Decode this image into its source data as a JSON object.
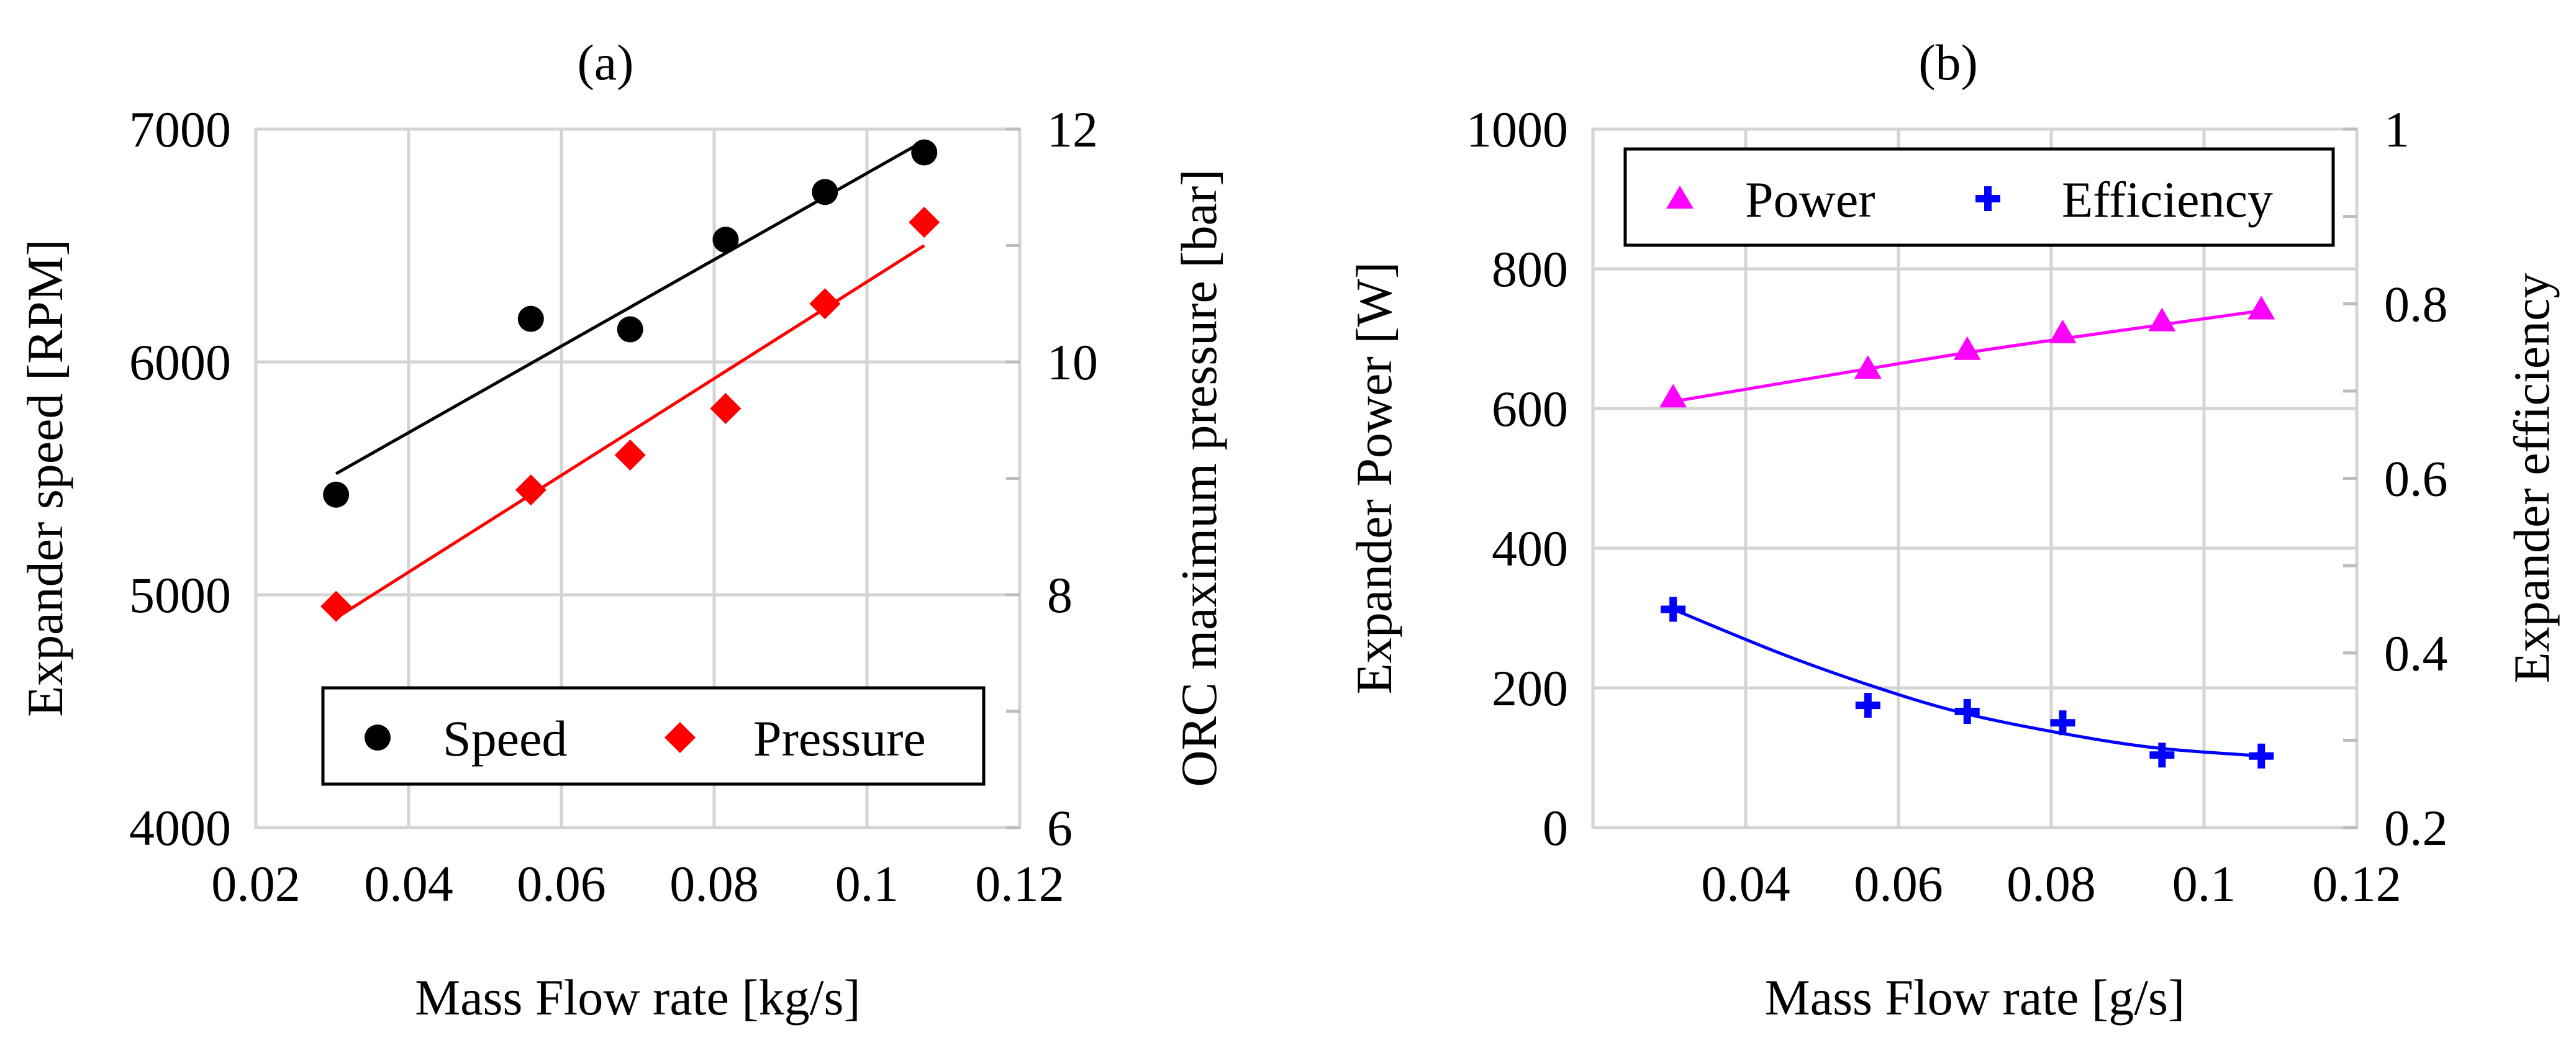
{
  "chart_data": [
    {
      "type": "scatter",
      "panel_label": "(a)",
      "title": "",
      "xlabel": "Mass Flow rate [kg/s]",
      "ylabel": "Expander speed [RPM]",
      "y2label": "ORC maximum pressure [bar]",
      "xlim": [
        0.02,
        0.12
      ],
      "ylim": [
        4000,
        7000
      ],
      "y2lim": [
        6,
        12
      ],
      "xticks": [
        0.02,
        0.04,
        0.06,
        0.08,
        0.1,
        0.12
      ],
      "xtick_labels": [
        "0.02",
        "0.04",
        "0.06",
        "0.08",
        "0.1",
        "0.12"
      ],
      "yticks": [
        4000,
        5000,
        6000,
        7000
      ],
      "ytick_labels": [
        "4000",
        "5000",
        "6000",
        "7000"
      ],
      "y2ticks": [
        6,
        8,
        10,
        12
      ],
      "y2tick_labels": [
        "6",
        "8",
        "10",
        "12"
      ],
      "grid": true,
      "legend_position": "bottom",
      "series": [
        {
          "name": "Speed",
          "axis": "left",
          "marker": "circle",
          "color": "#000000",
          "x": [
            0.0305,
            0.056,
            0.069,
            0.0815,
            0.0945,
            0.1075
          ],
          "y": [
            5430,
            6185,
            6140,
            6525,
            6730,
            6900
          ],
          "trendline": {
            "kind": "linear",
            "x": [
              0.0305,
              0.1075
            ],
            "y": [
              5520,
              6950
            ]
          }
        },
        {
          "name": "Pressure",
          "axis": "right",
          "marker": "diamond",
          "color": "#ff0000",
          "x": [
            0.0305,
            0.056,
            0.069,
            0.0815,
            0.0945,
            0.1075
          ],
          "y": [
            7.9,
            8.9,
            9.2,
            9.6,
            10.5,
            11.2
          ],
          "trendline": {
            "kind": "linear",
            "x": [
              0.0305,
              0.1075
            ],
            "y": [
              7.8,
              11.0
            ]
          }
        }
      ]
    },
    {
      "type": "scatter",
      "panel_label": "(b)",
      "title": "",
      "xlabel": "Mass Flow rate [g/s]",
      "ylabel": "Expander Power [W]",
      "y2label": "Expander efficiency",
      "xlim": [
        0.02,
        0.12
      ],
      "ylim": [
        0,
        1000
      ],
      "y2lim": [
        0.2,
        1.0
      ],
      "xticks": [
        0.04,
        0.06,
        0.08,
        0.1,
        0.12
      ],
      "xtick_labels": [
        "0.04",
        "0.06",
        "0.08",
        "0.1",
        "0.12"
      ],
      "yticks": [
        0,
        200,
        400,
        600,
        800,
        1000
      ],
      "ytick_labels": [
        "0",
        "200",
        "400",
        "600",
        "800",
        "1000"
      ],
      "y2ticks": [
        0.2,
        0.4,
        0.6,
        0.8,
        1.0
      ],
      "y2tick_labels": [
        "0.2",
        "0.4",
        "0.6",
        "0.8",
        "1"
      ],
      "grid": true,
      "legend_position": "top",
      "series": [
        {
          "name": "Power",
          "axis": "left",
          "marker": "triangle",
          "color": "#ff00ff",
          "x": [
            0.0305,
            0.056,
            0.069,
            0.0815,
            0.0945,
            0.1075
          ],
          "y": [
            614,
            655,
            682,
            706,
            723,
            740
          ],
          "trendline": {
            "kind": "poly2",
            "x": [
              0.0305,
              0.0495,
              0.069,
              0.088,
              0.1075
            ],
            "y": [
              610,
              645,
              680,
              710,
              740
            ]
          }
        },
        {
          "name": "Efficiency",
          "axis": "right",
          "marker": "plus",
          "color": "#0000ff",
          "x": [
            0.0305,
            0.056,
            0.069,
            0.0815,
            0.0945,
            0.1075
          ],
          "y": [
            0.45,
            0.34,
            0.333,
            0.32,
            0.283,
            0.282
          ],
          "trendline": {
            "kind": "poly2",
            "x": [
              0.0305,
              0.045,
              0.058,
              0.069,
              0.082,
              0.094,
              0.1075
            ],
            "y": [
              0.45,
              0.398,
              0.358,
              0.33,
              0.307,
              0.291,
              0.282
            ]
          }
        }
      ]
    }
  ]
}
